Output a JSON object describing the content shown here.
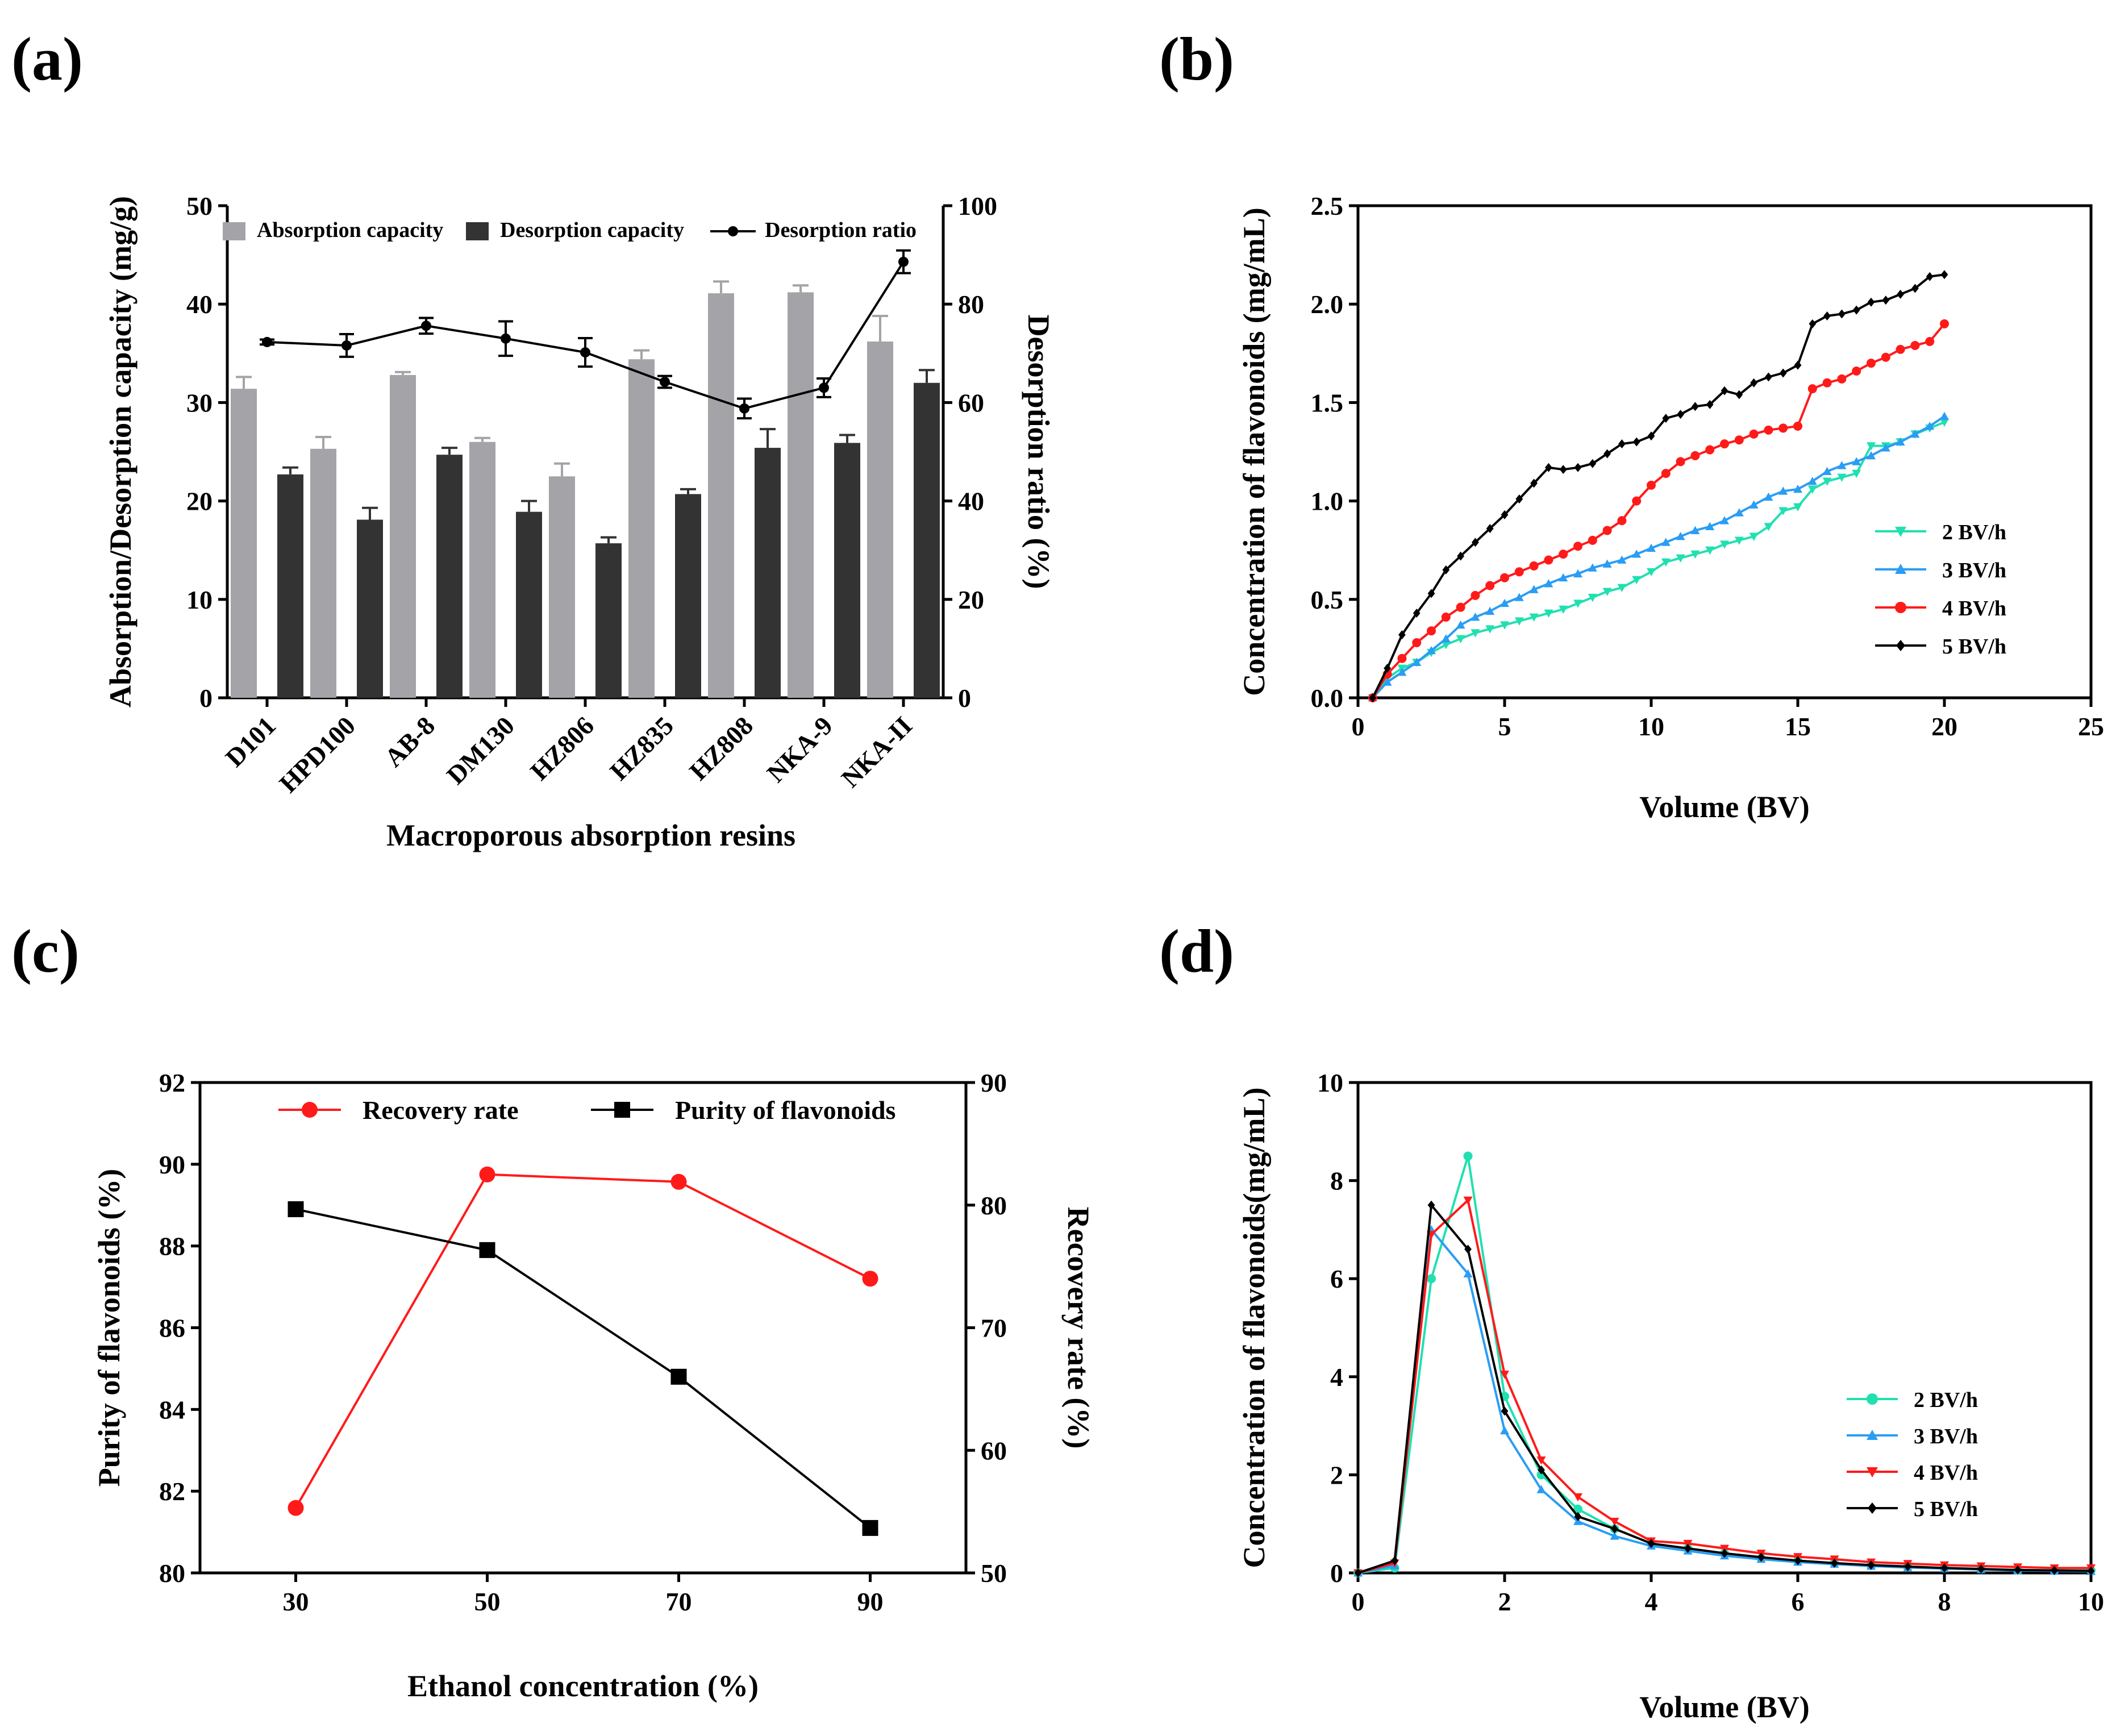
{
  "colors": {
    "absorption_bar": "#a3a3a8",
    "desorption_bar": "#333333",
    "ratio_line": "#000000",
    "teal": "#20e0b0",
    "blue": "#2a9df4",
    "red": "#ff1a1a",
    "black": "#000000"
  },
  "chart_data": [
    {
      "panel": "(a)",
      "type": "bar",
      "title": "",
      "xlabel": "Macroporous absorption resins",
      "ylabel": "Absorption/Desorption capacity (mg/g)",
      "y2label": "Desorption ratio (%)",
      "ylim": [
        0,
        50
      ],
      "y2lim": [
        0,
        100
      ],
      "yticks": [
        "0",
        "10",
        "20",
        "30",
        "40",
        "50"
      ],
      "y2ticks": [
        "0",
        "20",
        "40",
        "60",
        "80",
        "100"
      ],
      "categories": [
        "D101",
        "HPD100",
        "AB-8",
        "DM130",
        "HZ806",
        "HZ835",
        "HZ808",
        "NKA-9",
        "NKA-II"
      ],
      "series": [
        {
          "name": "Absorption capacity",
          "kind": "bar",
          "color": "#a3a3a8",
          "values": [
            31.4,
            25.3,
            32.8,
            26.0,
            22.5,
            34.4,
            41.1,
            41.2,
            36.2
          ],
          "errors": [
            1.2,
            1.2,
            0.3,
            0.4,
            1.3,
            0.9,
            1.2,
            0.7,
            2.6
          ]
        },
        {
          "name": "Desorption capacity",
          "kind": "bar",
          "color": "#333333",
          "values": [
            22.7,
            18.1,
            24.7,
            18.9,
            15.7,
            20.7,
            25.4,
            25.9,
            32.0
          ],
          "errors": [
            0.7,
            1.2,
            0.7,
            1.1,
            0.6,
            0.5,
            1.9,
            0.8,
            1.3
          ]
        },
        {
          "name": "Desorption ratio",
          "kind": "line",
          "axis": "right",
          "color": "#000000",
          "values": [
            72.3,
            71.6,
            75.6,
            73.0,
            70.2,
            64.2,
            58.8,
            63.0,
            88.6
          ],
          "errors": [
            0.5,
            2.3,
            1.6,
            3.5,
            2.9,
            1.2,
            2.0,
            1.9,
            2.3
          ]
        }
      ]
    },
    {
      "panel": "(b)",
      "type": "line",
      "title": "",
      "xlabel": "Volume (BV)",
      "ylabel": "Concentration of flavonoids (mg/mL)",
      "xlim": [
        0,
        25
      ],
      "ylim": [
        0,
        2.5
      ],
      "xticks": [
        "0",
        "5",
        "10",
        "15",
        "20",
        "25"
      ],
      "yticks": [
        "0.0",
        "0.5",
        "1.0",
        "1.5",
        "2.0",
        "2.5"
      ],
      "legend": "right",
      "series": [
        {
          "name": "2 BV/h",
          "color": "#20e0b0",
          "marker": "triangle-down",
          "x": [
            0.5,
            1,
            1.5,
            2,
            2.5,
            3,
            3.5,
            4,
            4.5,
            5,
            5.5,
            6,
            6.5,
            7,
            7.5,
            8,
            8.5,
            9,
            9.5,
            10,
            10.5,
            11,
            11.5,
            12,
            12.5,
            13,
            13.5,
            14,
            14.5,
            15,
            15.5,
            16,
            16.5,
            17,
            17.5,
            18,
            18.5,
            19,
            19.5,
            20
          ],
          "y": [
            0.0,
            0.1,
            0.15,
            0.18,
            0.23,
            0.27,
            0.3,
            0.33,
            0.35,
            0.37,
            0.39,
            0.41,
            0.43,
            0.45,
            0.48,
            0.51,
            0.54,
            0.56,
            0.6,
            0.64,
            0.69,
            0.71,
            0.73,
            0.75,
            0.78,
            0.8,
            0.82,
            0.87,
            0.95,
            0.97,
            1.06,
            1.1,
            1.12,
            1.14,
            1.28,
            1.28,
            1.3,
            1.34,
            1.37,
            1.4
          ]
        },
        {
          "name": "3 BV/h",
          "color": "#2a9df4",
          "marker": "triangle-up",
          "x": [
            0.5,
            1,
            1.5,
            2,
            2.5,
            3,
            3.5,
            4,
            4.5,
            5,
            5.5,
            6,
            6.5,
            7,
            7.5,
            8,
            8.5,
            9,
            9.5,
            10,
            10.5,
            11,
            11.5,
            12,
            12.5,
            13,
            13.5,
            14,
            14.5,
            15,
            15.5,
            16,
            16.5,
            17,
            17.5,
            18,
            18.5,
            19,
            19.5,
            20
          ],
          "y": [
            0.0,
            0.08,
            0.13,
            0.18,
            0.24,
            0.3,
            0.37,
            0.41,
            0.44,
            0.48,
            0.51,
            0.55,
            0.58,
            0.61,
            0.63,
            0.66,
            0.68,
            0.7,
            0.73,
            0.76,
            0.79,
            0.82,
            0.85,
            0.87,
            0.9,
            0.94,
            0.98,
            1.02,
            1.05,
            1.06,
            1.1,
            1.15,
            1.18,
            1.2,
            1.23,
            1.27,
            1.3,
            1.34,
            1.38,
            1.43
          ]
        },
        {
          "name": "4 BV/h",
          "color": "#ff1a1a",
          "marker": "circle",
          "x": [
            0.5,
            1,
            1.5,
            2,
            2.5,
            3,
            3.5,
            4,
            4.5,
            5,
            5.5,
            6,
            6.5,
            7,
            7.5,
            8,
            8.5,
            9,
            9.5,
            10,
            10.5,
            11,
            11.5,
            12,
            12.5,
            13,
            13.5,
            14,
            14.5,
            15,
            15.5,
            16,
            16.5,
            17,
            17.5,
            18,
            18.5,
            19,
            19.5,
            20
          ],
          "y": [
            0.0,
            0.12,
            0.2,
            0.28,
            0.34,
            0.41,
            0.46,
            0.52,
            0.57,
            0.61,
            0.64,
            0.67,
            0.7,
            0.73,
            0.77,
            0.8,
            0.85,
            0.9,
            1.0,
            1.08,
            1.14,
            1.2,
            1.23,
            1.26,
            1.29,
            1.31,
            1.34,
            1.36,
            1.37,
            1.38,
            1.57,
            1.6,
            1.62,
            1.66,
            1.7,
            1.73,
            1.77,
            1.79,
            1.81,
            1.9
          ]
        },
        {
          "name": "5 BV/h",
          "color": "#000000",
          "marker": "diamond",
          "x": [
            0.5,
            1,
            1.5,
            2,
            2.5,
            3,
            3.5,
            4,
            4.5,
            5,
            5.5,
            6,
            6.5,
            7,
            7.5,
            8,
            8.5,
            9,
            9.5,
            10,
            10.5,
            11,
            11.5,
            12,
            12.5,
            13,
            13.5,
            14,
            14.5,
            15,
            15.5,
            16,
            16.5,
            17,
            17.5,
            18,
            18.5,
            19,
            19.5,
            20
          ],
          "y": [
            0.0,
            0.15,
            0.32,
            0.43,
            0.53,
            0.65,
            0.72,
            0.79,
            0.86,
            0.93,
            1.01,
            1.09,
            1.17,
            1.16,
            1.17,
            1.19,
            1.24,
            1.29,
            1.3,
            1.33,
            1.42,
            1.44,
            1.48,
            1.49,
            1.56,
            1.54,
            1.6,
            1.63,
            1.65,
            1.69,
            1.9,
            1.94,
            1.95,
            1.97,
            2.01,
            2.02,
            2.05,
            2.08,
            2.14,
            2.15
          ]
        }
      ]
    },
    {
      "panel": "(c)",
      "type": "line",
      "title": "",
      "xlabel": "Ethanol concentration (%)",
      "ylabel": "Purity of flavonoids (%)",
      "y2label": "Recovery rate (%)",
      "xlim": [
        20,
        100
      ],
      "ylim": [
        80,
        92
      ],
      "y2lim": [
        50,
        90
      ],
      "xticks": [
        "30",
        "50",
        "70",
        "90"
      ],
      "yticks": [
        "80",
        "82",
        "84",
        "86",
        "88",
        "90",
        "92"
      ],
      "y2ticks": [
        "50",
        "60",
        "70",
        "80",
        "90"
      ],
      "legend": "top",
      "series": [
        {
          "name": "Recovery rate",
          "axis": "right",
          "color": "#ff1a1a",
          "marker": "circle",
          "x": [
            30,
            50,
            70,
            90
          ],
          "y": [
            55.3,
            82.5,
            81.9,
            74.0
          ]
        },
        {
          "name": "Purity of flavonoids",
          "axis": "left",
          "color": "#000000",
          "marker": "square",
          "x": [
            30,
            50,
            70,
            90
          ],
          "y": [
            88.9,
            87.9,
            84.8,
            81.1
          ]
        }
      ]
    },
    {
      "panel": "(d)",
      "type": "line",
      "title": "",
      "xlabel": "Volume (BV)",
      "ylabel": "Concentration of flavonoids(mg/mL)",
      "xlim": [
        0,
        10
      ],
      "ylim": [
        0,
        10
      ],
      "xticks": [
        "0",
        "2",
        "4",
        "6",
        "8",
        "10"
      ],
      "yticks": [
        "0",
        "2",
        "4",
        "6",
        "8",
        "10"
      ],
      "legend": "right",
      "series": [
        {
          "name": "2 BV/h",
          "color": "#20e0b0",
          "marker": "circle",
          "x": [
            0,
            0.5,
            1,
            1.5,
            2,
            2.5,
            3,
            3.5,
            4,
            4.5,
            5,
            5.5,
            6,
            6.5,
            7,
            7.5,
            8,
            8.5,
            9,
            9.5,
            10
          ],
          "y": [
            0,
            0.1,
            6.0,
            8.5,
            3.6,
            2.0,
            1.3,
            0.9,
            0.6,
            0.5,
            0.4,
            0.3,
            0.25,
            0.2,
            0.15,
            0.12,
            0.1,
            0.08,
            0.06,
            0.05,
            0.05
          ]
        },
        {
          "name": "3 BV/h",
          "color": "#2a9df4",
          "marker": "triangle-up",
          "x": [
            0,
            0.5,
            1,
            1.5,
            2,
            2.5,
            3,
            3.5,
            4,
            4.5,
            5,
            5.5,
            6,
            6.5,
            7,
            7.5,
            8,
            8.5,
            9,
            9.5,
            10
          ],
          "y": [
            0,
            0.15,
            7.0,
            6.1,
            2.9,
            1.7,
            1.05,
            0.75,
            0.55,
            0.45,
            0.35,
            0.28,
            0.22,
            0.18,
            0.14,
            0.11,
            0.09,
            0.07,
            0.05,
            0.04,
            0.03
          ]
        },
        {
          "name": "4 BV/h",
          "color": "#ff1a1a",
          "marker": "triangle-down",
          "x": [
            0,
            0.5,
            1,
            1.5,
            2,
            2.5,
            3,
            3.5,
            4,
            4.5,
            5,
            5.5,
            6,
            6.5,
            7,
            7.5,
            8,
            8.5,
            9,
            9.5,
            10
          ],
          "y": [
            0,
            0.2,
            6.9,
            7.6,
            4.05,
            2.3,
            1.55,
            1.05,
            0.65,
            0.6,
            0.5,
            0.4,
            0.33,
            0.28,
            0.22,
            0.19,
            0.16,
            0.14,
            0.12,
            0.1,
            0.1
          ]
        },
        {
          "name": "5 BV/h",
          "color": "#000000",
          "marker": "diamond",
          "x": [
            0,
            0.5,
            1,
            1.5,
            2,
            2.5,
            3,
            3.5,
            4,
            4.5,
            5,
            5.5,
            6,
            6.5,
            7,
            7.5,
            8,
            8.5,
            9,
            9.5,
            10
          ],
          "y": [
            0,
            0.25,
            7.5,
            6.6,
            3.3,
            2.1,
            1.15,
            0.9,
            0.6,
            0.5,
            0.4,
            0.32,
            0.25,
            0.2,
            0.16,
            0.13,
            0.1,
            0.08,
            0.06,
            0.05,
            0.04
          ]
        }
      ]
    }
  ]
}
